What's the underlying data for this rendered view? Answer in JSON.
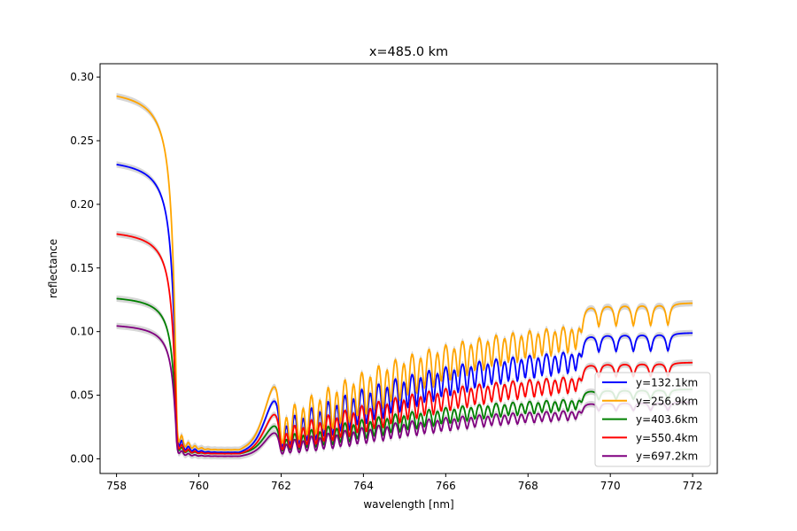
{
  "chart_data": {
    "type": "line",
    "title": "x=485.0 km",
    "xlabel": "wavelength [nm]",
    "ylabel": "reflectance",
    "xlim": [
      757.6,
      772.6
    ],
    "ylim": [
      -0.0115,
      0.3105
    ],
    "xticks": [
      "758",
      "760",
      "762",
      "764",
      "766",
      "768",
      "770",
      "772"
    ],
    "yticks": [
      "0.00",
      "0.05",
      "0.10",
      "0.15",
      "0.20",
      "0.25",
      "0.30"
    ],
    "grid": false,
    "legend_position": "lower-right",
    "x_range": [
      758,
      772
    ],
    "band_shading": "lightgray",
    "series": [
      {
        "name": "y=132.1km",
        "color": "#0000ff",
        "continuum": 0.237,
        "floor": 0.005
      },
      {
        "name": "y=256.9km",
        "color": "#ffa500",
        "continuum": 0.292,
        "floor": 0.007
      },
      {
        "name": "y=403.6km",
        "color": "#008000",
        "continuum": 0.129,
        "floor": 0.004
      },
      {
        "name": "y=550.4km",
        "color": "#ff0000",
        "continuum": 0.181,
        "floor": 0.004
      },
      {
        "name": "y=697.2km",
        "color": "#800080",
        "continuum": 0.107,
        "floor": 0.002
      }
    ]
  }
}
